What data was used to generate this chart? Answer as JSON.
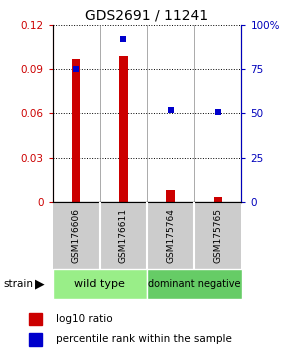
{
  "title": "GDS2691 / 11241",
  "samples": [
    "GSM176606",
    "GSM176611",
    "GSM175764",
    "GSM175765"
  ],
  "log10_ratio": [
    0.097,
    0.099,
    0.008,
    0.003
  ],
  "percentile_rank": [
    75,
    92,
    52,
    51
  ],
  "ylim_left": [
    0,
    0.12
  ],
  "ylim_right": [
    0,
    100
  ],
  "yticks_left": [
    0,
    0.03,
    0.06,
    0.09,
    0.12
  ],
  "yticks_right": [
    0,
    25,
    50,
    75,
    100
  ],
  "ytick_labels_right": [
    "0",
    "25",
    "50",
    "75",
    "100%"
  ],
  "bar_color": "#CC0000",
  "dot_color": "#0000CC",
  "left_tick_color": "#CC0000",
  "right_tick_color": "#0000BB",
  "legend_red_label": "log10 ratio",
  "legend_blue_label": "percentile rank within the sample",
  "group_labels": [
    "wild type",
    "dominant negative"
  ],
  "group_colors": [
    "#99EE88",
    "#66CC66"
  ],
  "sample_box_color": "#CCCCCC",
  "bar_width": 0.18,
  "bg_color": "#FFFFFF"
}
